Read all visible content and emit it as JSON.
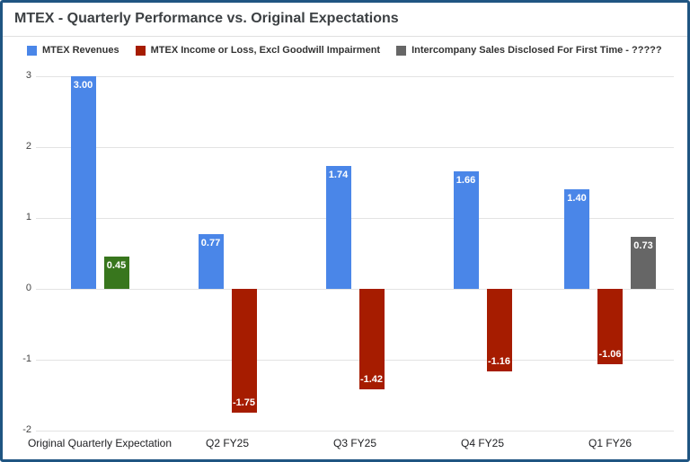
{
  "page": {
    "border_color": "#1f5582",
    "background": "#ffffff"
  },
  "header": {
    "title": "MTEX - Quarterly Performance vs. Original Expectations"
  },
  "chart_data": {
    "type": "bar",
    "title": "MTEX - Quarterly Performance vs. Original Expectations",
    "categories": [
      "Original Quarterly Expectation",
      "Q2 FY25",
      "Q3 FY25",
      "Q4 FY25",
      "Q1 FY26"
    ],
    "series": [
      {
        "name": "MTEX Revenues",
        "color": "#4a86e8",
        "values": [
          3.0,
          0.77,
          1.74,
          1.66,
          1.4
        ],
        "labels": [
          "3.00",
          "0.77",
          "1.74",
          "1.66",
          "1.40"
        ]
      },
      {
        "name": "MTEX Income or Loss, Excl Goodwill Impairment",
        "color": "#a61c00",
        "values": [
          0.45,
          -1.75,
          -1.42,
          -1.16,
          -1.06
        ],
        "labels": [
          "0.45",
          "-1.75",
          "-1.42",
          "-1.16",
          "-1.06"
        ],
        "point_colors": {
          "0": "#38761d"
        }
      },
      {
        "name": "Intercompany Sales Disclosed For First Time - ?????",
        "color": "#666666",
        "values": [
          null,
          null,
          null,
          null,
          0.73
        ],
        "labels": [
          null,
          null,
          null,
          null,
          "0.73"
        ]
      }
    ],
    "y_axis": {
      "min": -2,
      "max": 3,
      "ticks": [
        3,
        2,
        1,
        0,
        -1,
        -2
      ]
    },
    "grid": true,
    "legend_position": "top",
    "data_label_color": "#ffffff",
    "xlabel": "",
    "ylabel": ""
  }
}
